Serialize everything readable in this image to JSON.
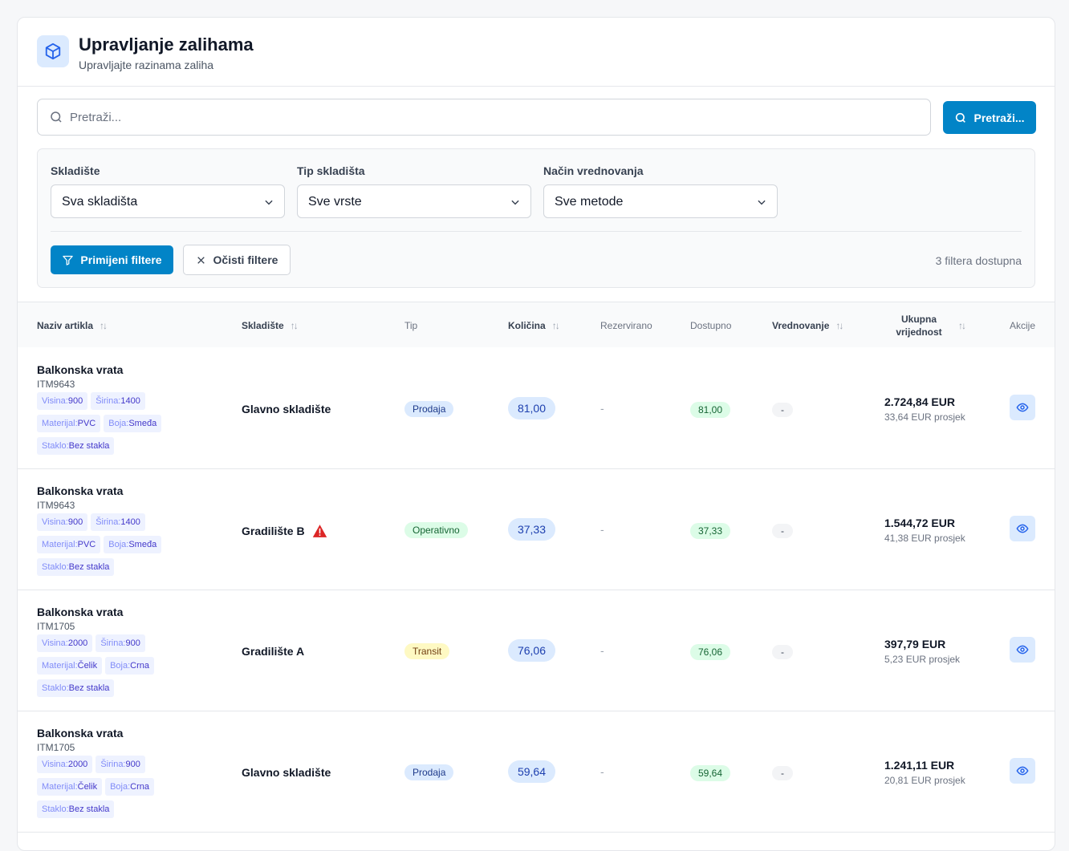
{
  "header": {
    "title": "Upravljanje zalihama",
    "subtitle": "Upravljajte razinama zaliha",
    "icon": "package-icon"
  },
  "search": {
    "placeholder": "Pretraži...",
    "value": "",
    "button_label": "Pretraži..."
  },
  "filters": {
    "warehouse_label": "Skladište",
    "warehouse_value": "Sva skladišta",
    "type_label": "Tip skladišta",
    "type_value": "Sve vrste",
    "method_label": "Način vrednovanja",
    "method_value": "Sve metode",
    "apply_label": "Primijeni filtere",
    "clear_label": "Očisti filtere",
    "count_text": "3 filtera dostupna"
  },
  "table": {
    "columns": {
      "name": "Naziv artikla",
      "warehouse": "Skladište",
      "type": "Tip",
      "quantity": "Količina",
      "reserved": "Rezervirano",
      "available": "Dostupno",
      "valuation": "Vrednovanje",
      "total_line1": "Ukupna",
      "total_line2": "vrijednost",
      "actions": "Akcije"
    },
    "rows": [
      {
        "name": "Balkonska vrata",
        "code": "ITM9643",
        "attrs": [
          [
            {
              "k": "Visina:",
              "v": "900"
            },
            {
              "k": "Širina:",
              "v": "1400"
            }
          ],
          [
            {
              "k": "Materijal:",
              "v": "PVC"
            },
            {
              "k": "Boja:",
              "v": "Smeđa"
            }
          ],
          [
            {
              "k": "Staklo:",
              "v": "Bez stakla"
            }
          ]
        ],
        "warehouse": "Glavno skladište",
        "warning": false,
        "type": "Prodaja",
        "type_color": "blue",
        "quantity": "81,00",
        "reserved": "-",
        "available": "81,00",
        "valuation": "-",
        "total": "2.724,84 EUR",
        "avg": "33,64 EUR prosjek"
      },
      {
        "name": "Balkonska vrata",
        "code": "ITM9643",
        "attrs": [
          [
            {
              "k": "Visina:",
              "v": "900"
            },
            {
              "k": "Širina:",
              "v": "1400"
            }
          ],
          [
            {
              "k": "Materijal:",
              "v": "PVC"
            },
            {
              "k": "Boja:",
              "v": "Smeđa"
            }
          ],
          [
            {
              "k": "Staklo:",
              "v": "Bez stakla"
            }
          ]
        ],
        "warehouse": "Gradilište B",
        "warning": true,
        "type": "Operativno",
        "type_color": "green",
        "quantity": "37,33",
        "reserved": "-",
        "available": "37,33",
        "valuation": "-",
        "total": "1.544,72 EUR",
        "avg": "41,38 EUR prosjek"
      },
      {
        "name": "Balkonska vrata",
        "code": "ITM1705",
        "attrs": [
          [
            {
              "k": "Visina:",
              "v": "2000"
            },
            {
              "k": "Širina:",
              "v": "900"
            }
          ],
          [
            {
              "k": "Materijal:",
              "v": "Čelik"
            },
            {
              "k": "Boja:",
              "v": "Crna"
            }
          ],
          [
            {
              "k": "Staklo:",
              "v": "Bez stakla"
            }
          ]
        ],
        "warehouse": "Gradilište A",
        "warning": false,
        "type": "Transit",
        "type_color": "yellow",
        "quantity": "76,06",
        "reserved": "-",
        "available": "76,06",
        "valuation": "-",
        "total": "397,79 EUR",
        "avg": "5,23 EUR prosjek"
      },
      {
        "name": "Balkonska vrata",
        "code": "ITM1705",
        "attrs": [
          [
            {
              "k": "Visina:",
              "v": "2000"
            },
            {
              "k": "Širina:",
              "v": "900"
            }
          ],
          [
            {
              "k": "Materijal:",
              "v": "Čelik"
            },
            {
              "k": "Boja:",
              "v": "Crna"
            }
          ],
          [
            {
              "k": "Staklo:",
              "v": "Bez stakla"
            }
          ]
        ],
        "warehouse": "Glavno skladište",
        "warning": false,
        "type": "Prodaja",
        "type_color": "blue",
        "quantity": "59,64",
        "reserved": "-",
        "available": "59,64",
        "valuation": "-",
        "total": "1.241,11 EUR",
        "avg": "20,81 EUR prosjek"
      }
    ]
  },
  "colors": {
    "accent": "#0284c7",
    "icon_blue": "#2563eb",
    "warning": "#dc2626"
  }
}
